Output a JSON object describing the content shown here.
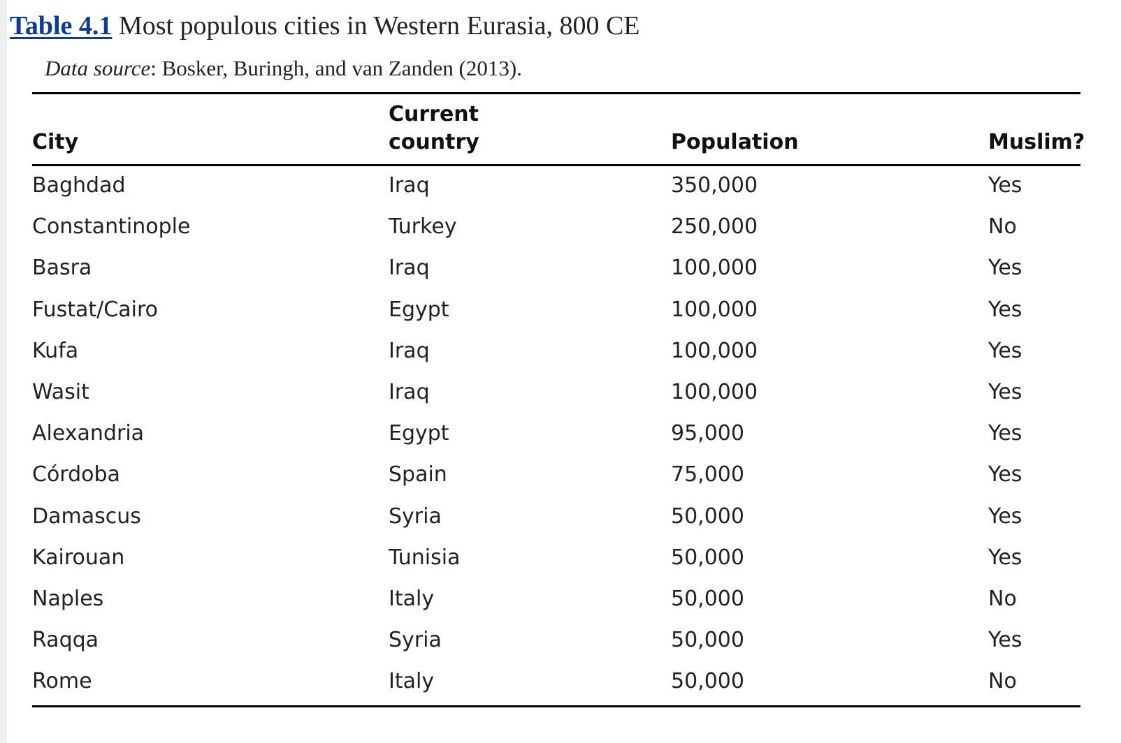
{
  "caption": {
    "label": "Table 4.1",
    "title": "Most populous cities in Western Eurasia, 800 CE"
  },
  "source": {
    "label": "Data source",
    "text": ": Bosker, Buringh, and van Zanden (2013)."
  },
  "table": {
    "headers": {
      "city": "City",
      "country": "Current\ncountry",
      "population": "Population",
      "muslim": "Muslim?"
    },
    "rows": [
      {
        "city": "Baghdad",
        "country": "Iraq",
        "population": "350,000",
        "muslim": "Yes"
      },
      {
        "city": "Constantinople",
        "country": "Turkey",
        "population": "250,000",
        "muslim": "No"
      },
      {
        "city": "Basra",
        "country": "Iraq",
        "population": "100,000",
        "muslim": "Yes"
      },
      {
        "city": "Fustat/Cairo",
        "country": "Egypt",
        "population": "100,000",
        "muslim": "Yes"
      },
      {
        "city": "Kufa",
        "country": "Iraq",
        "population": "100,000",
        "muslim": "Yes"
      },
      {
        "city": "Wasit",
        "country": "Iraq",
        "population": "100,000",
        "muslim": "Yes"
      },
      {
        "city": "Alexandria",
        "country": "Egypt",
        "population": "95,000",
        "muslim": "Yes"
      },
      {
        "city": "Córdoba",
        "country": "Spain",
        "population": "75,000",
        "muslim": "Yes"
      },
      {
        "city": "Damascus",
        "country": "Syria",
        "population": "50,000",
        "muslim": "Yes"
      },
      {
        "city": "Kairouan",
        "country": "Tunisia",
        "population": "50,000",
        "muslim": "Yes"
      },
      {
        "city": "Naples",
        "country": "Italy",
        "population": "50,000",
        "muslim": "No"
      },
      {
        "city": "Raqqa",
        "country": "Syria",
        "population": "50,000",
        "muslim": "Yes"
      },
      {
        "city": "Rome",
        "country": "Italy",
        "population": "50,000",
        "muslim": "No"
      }
    ]
  }
}
